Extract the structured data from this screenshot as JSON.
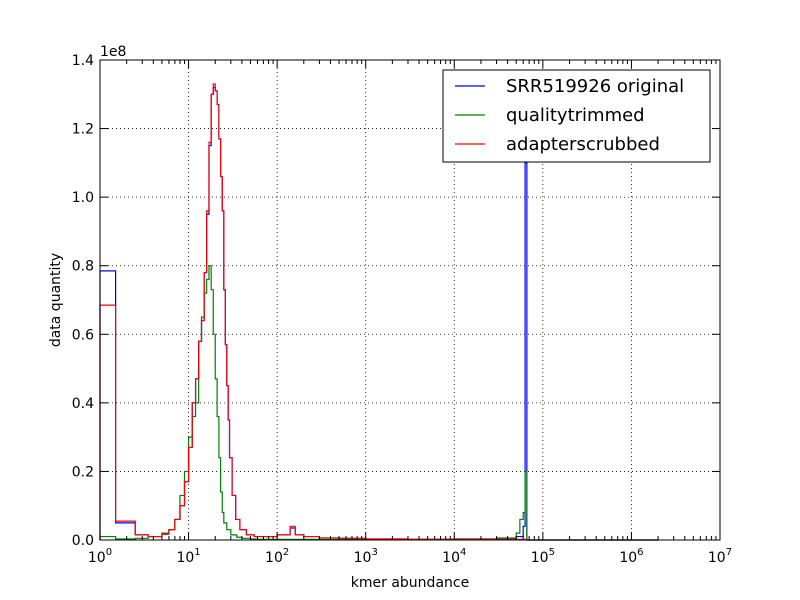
{
  "chart_data": {
    "type": "line",
    "title": "",
    "xlabel": "kmer abundance",
    "ylabel": "data quantity",
    "offset_label": "1e8",
    "xscale": "log",
    "xlim": [
      1,
      10000000
    ],
    "ylim": [
      0,
      1.4
    ],
    "xticks": [
      {
        "value": 1,
        "base": "10",
        "exp": "0"
      },
      {
        "value": 10,
        "base": "10",
        "exp": "1"
      },
      {
        "value": 100,
        "base": "10",
        "exp": "2"
      },
      {
        "value": 1000,
        "base": "10",
        "exp": "3"
      },
      {
        "value": 10000,
        "base": "10",
        "exp": "4"
      },
      {
        "value": 100000,
        "base": "10",
        "exp": "5"
      },
      {
        "value": 1000000,
        "base": "10",
        "exp": "6"
      },
      {
        "value": 10000000,
        "base": "10",
        "exp": "7"
      }
    ],
    "yticks": [
      {
        "value": 0.0,
        "label": "0.0"
      },
      {
        "value": 0.2,
        "label": "0.2"
      },
      {
        "value": 0.4,
        "label": "0.4"
      },
      {
        "value": 0.6,
        "label": "0.6"
      },
      {
        "value": 0.8,
        "label": "0.8"
      },
      {
        "value": 1.0,
        "label": "1.0"
      },
      {
        "value": 1.2,
        "label": "1.2"
      },
      {
        "value": 1.4,
        "label": "1.4"
      }
    ],
    "grid": true,
    "legend_position": "top-right",
    "series": [
      {
        "name": "SRR519926 original",
        "color": "#0000ff",
        "x": [
          1,
          1.5,
          2.5,
          3.5,
          5,
          6,
          7,
          8,
          9,
          10,
          11,
          12,
          13,
          14,
          15,
          16,
          17,
          18,
          19,
          20,
          21,
          22,
          23,
          24,
          25,
          26,
          27,
          28,
          29,
          31,
          34,
          38,
          45,
          55,
          70,
          100,
          140,
          160,
          200,
          300,
          500,
          1000,
          3000,
          10000,
          30000,
          50000,
          60000,
          63000,
          66000,
          70000,
          2000000
        ],
        "y": [
          0.785,
          0.05,
          0.015,
          0.01,
          0.017,
          0.03,
          0.06,
          0.1,
          0.17,
          0.27,
          0.4,
          0.47,
          0.58,
          0.64,
          0.78,
          0.95,
          1.15,
          1.3,
          1.32,
          1.31,
          1.27,
          1.17,
          1.06,
          0.96,
          0.73,
          0.57,
          0.45,
          0.35,
          0.24,
          0.13,
          0.06,
          0.03,
          0.015,
          0.01,
          0.01,
          0.015,
          0.035,
          0.015,
          0.01,
          0.006,
          0.005,
          0.003,
          0.002,
          0.003,
          0.005,
          0.01,
          0.04,
          1.1,
          0.0,
          0.0,
          0.0
        ]
      },
      {
        "name": "qualitytrimmed",
        "color": "#008000",
        "x": [
          1,
          1.5,
          2.5,
          3.5,
          5,
          6,
          7,
          8,
          9,
          10,
          11,
          12,
          13,
          14,
          15,
          16,
          17,
          18,
          19,
          20,
          21,
          22,
          23,
          24,
          25,
          27,
          30,
          35,
          40,
          50,
          60,
          80,
          100,
          200,
          500,
          1000,
          10000,
          30000,
          50000,
          55000,
          60000,
          63000,
          66000,
          70000,
          2000000
        ],
        "y": [
          0.01,
          0.003,
          0.005,
          0.01,
          0.02,
          0.03,
          0.06,
          0.13,
          0.2,
          0.3,
          0.36,
          0.4,
          0.58,
          0.65,
          0.72,
          0.76,
          0.8,
          0.73,
          0.6,
          0.47,
          0.36,
          0.24,
          0.14,
          0.08,
          0.05,
          0.03,
          0.015,
          0.008,
          0.005,
          0.003,
          0.002,
          0.002,
          0.002,
          0.002,
          0.002,
          0.002,
          0.003,
          0.006,
          0.02,
          0.06,
          0.08,
          0.2,
          0.0,
          0.0,
          0.0
        ]
      },
      {
        "name": "adapterscrubbed",
        "color": "#ff0000",
        "x": [
          1,
          1.5,
          2.5,
          3.5,
          5,
          6,
          7,
          8,
          9,
          10,
          11,
          12,
          13,
          14,
          15,
          16,
          17,
          18,
          19,
          20,
          21,
          22,
          23,
          24,
          25,
          26,
          27,
          28,
          29,
          31,
          34,
          38,
          45,
          55,
          70,
          100,
          140,
          160,
          200,
          300,
          500,
          1000,
          3000,
          10000,
          30000,
          60000,
          66000,
          2000000
        ],
        "y": [
          0.685,
          0.055,
          0.015,
          0.01,
          0.017,
          0.03,
          0.06,
          0.1,
          0.17,
          0.27,
          0.4,
          0.47,
          0.58,
          0.64,
          0.78,
          0.96,
          1.16,
          1.3,
          1.33,
          1.31,
          1.27,
          1.17,
          1.06,
          0.96,
          0.73,
          0.57,
          0.45,
          0.35,
          0.24,
          0.13,
          0.06,
          0.03,
          0.015,
          0.01,
          0.01,
          0.015,
          0.04,
          0.015,
          0.01,
          0.006,
          0.005,
          0.003,
          0.002,
          0.002,
          0.002,
          0.002,
          0.0,
          0.0
        ]
      }
    ]
  }
}
